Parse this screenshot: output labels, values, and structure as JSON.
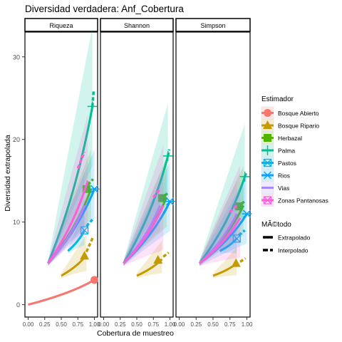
{
  "chart_data": {
    "type": "line",
    "title": "Diversidad verdadera: Anf_Cobertura",
    "xlabel": "Cobertura de muestreo",
    "ylabel": "Diversidad extrapolada",
    "xlim": [
      0,
      1
    ],
    "ylim": [
      -1.5,
      33
    ],
    "x_ticks": [
      "0.00",
      "0.25",
      "0.50",
      "0.75",
      "1.00"
    ],
    "y_ticks": [
      "0",
      "10",
      "20",
      "30"
    ],
    "facets": [
      "Riqueza",
      "Shannon",
      "Simpson"
    ],
    "legend_title": "Estimador",
    "method_title": "MÃ©todo",
    "methods": [
      "Extrapolado",
      "Interpolado"
    ],
    "series": [
      {
        "name": "Bosque Abierto",
        "color": "#F8766D",
        "marker": "circle",
        "facets": [
          {
            "x0": 0.0,
            "y0": 0.0,
            "x1": 1.0,
            "y1": 3.0,
            "sx": 1.0,
            "sy": 3.0,
            "ribbon": 0.0,
            "interp": []
          },
          null,
          null
        ]
      },
      {
        "name": "Bosque Ripario",
        "color": "#C49A00",
        "marker": "triangle",
        "facets": [
          {
            "x0": 0.5,
            "y0": 3.5,
            "x1": 0.88,
            "y1": 6.0,
            "sx": 0.85,
            "sy": 5.9,
            "ribbon": 1.6,
            "interp": [
              0.88,
              0.98
            ],
            "iy": [
              6.4,
              8.2
            ]
          },
          {
            "x0": 0.5,
            "y0": 3.5,
            "x1": 0.88,
            "y1": 5.5,
            "sx": 0.82,
            "sy": 5.4,
            "ribbon": 1.4,
            "interp": [
              0.9,
              0.98
            ],
            "iy": [
              5.8,
              6.3
            ]
          },
          {
            "x0": 0.5,
            "y0": 3.5,
            "x1": 0.85,
            "y1": 5.0,
            "sx": 0.84,
            "sy": 5.0,
            "ribbon": 1.2,
            "interp": [
              0.9,
              0.98
            ],
            "iy": [
              5.2,
              5.6
            ]
          }
        ]
      },
      {
        "name": "Herbazal",
        "color": "#53B400",
        "marker": "square",
        "facets": [
          {
            "x0": 0.3,
            "y0": 5.0,
            "x1": 0.95,
            "y1": 14.0,
            "sx": 0.88,
            "sy": 14.0,
            "ribbon": 3.0,
            "interp": [
              0.9,
              0.98
            ],
            "iy": [
              14.5,
              15.2
            ]
          },
          {
            "x0": 0.3,
            "y0": 5.0,
            "x1": 0.95,
            "y1": 13.0,
            "sx": 0.88,
            "sy": 12.9,
            "ribbon": 3.0,
            "interp": [
              0.92,
              0.98
            ],
            "iy": [
              13.2,
              13.6
            ]
          },
          {
            "x0": 0.3,
            "y0": 5.0,
            "x1": 0.95,
            "y1": 12.0,
            "sx": 0.88,
            "sy": 11.9,
            "ribbon": 3.0,
            "interp": [
              0.92,
              0.98
            ],
            "iy": [
              12.2,
              12.6
            ]
          }
        ]
      },
      {
        "name": "Palma",
        "color": "#00C094",
        "marker": "plus",
        "facets": [
          {
            "x0": 0.3,
            "y0": 5.0,
            "x1": 0.97,
            "y1": 24.0,
            "sx": 0.97,
            "sy": 24.0,
            "ribbon": 6.0,
            "interp": [
              0.97,
              0.99
            ],
            "iy": [
              24.0,
              26.0
            ]
          },
          {
            "x0": 0.3,
            "y0": 5.0,
            "x1": 0.97,
            "y1": 18.0,
            "sx": 0.97,
            "sy": 18.0,
            "ribbon": 4.0,
            "interp": [
              0.97,
              0.99
            ],
            "iy": [
              18.0,
              18.8
            ]
          },
          {
            "x0": 0.3,
            "y0": 5.0,
            "x1": 0.97,
            "y1": 15.5,
            "sx": 0.97,
            "sy": 15.5,
            "ribbon": 4.0,
            "interp": [
              0.97,
              0.99
            ],
            "iy": [
              15.5,
              16.0
            ]
          }
        ]
      },
      {
        "name": "Pastos",
        "color": "#00B6EB",
        "marker": "boxx",
        "facets": [
          {
            "x0": 0.6,
            "y0": 6.5,
            "x1": 0.85,
            "y1": 9.0,
            "sx": 0.85,
            "sy": 9.0,
            "ribbon": 1.5,
            "interp": [
              0.88,
              0.97
            ],
            "iy": [
              9.5,
              10.3
            ]
          },
          null,
          {
            "x0": 0.6,
            "y0": 6.5,
            "x1": 0.85,
            "y1": 8.0,
            "sx": 0.85,
            "sy": 8.0,
            "ribbon": 1.5,
            "interp": [
              0.88,
              0.97
            ],
            "iy": [
              8.4,
              9.0
            ]
          }
        ]
      },
      {
        "name": "Rios",
        "color": "#06A4FF",
        "marker": "star",
        "facets": [
          {
            "x0": 0.3,
            "y0": 5.0,
            "x1": 1.0,
            "y1": 14.0,
            "sx": 1.0,
            "sy": 14.0,
            "ribbon": 3.0,
            "interp": [],
            "iy": []
          },
          {
            "x0": 0.3,
            "y0": 5.0,
            "x1": 1.0,
            "y1": 12.5,
            "sx": 1.0,
            "sy": 12.5,
            "ribbon": 3.0,
            "interp": [],
            "iy": []
          },
          {
            "x0": 0.3,
            "y0": 5.0,
            "x1": 1.0,
            "y1": 11.0,
            "sx": 1.0,
            "sy": 11.0,
            "ribbon": 3.0,
            "interp": [],
            "iy": []
          }
        ]
      },
      {
        "name": "Vias",
        "color": "#A58AFF",
        "marker": "none",
        "facets": [
          {
            "x0": 0.3,
            "y0": 5.0,
            "x1": 0.85,
            "y1": 12.0,
            "sx": 0.85,
            "sy": 12.0,
            "ribbon": 2.5,
            "interp": [],
            "iy": []
          },
          {
            "x0": 0.3,
            "y0": 5.0,
            "x1": 0.85,
            "y1": 12.0,
            "sx": 0.85,
            "sy": 12.0,
            "ribbon": 2.5,
            "interp": [],
            "iy": []
          },
          {
            "x0": 0.3,
            "y0": 5.0,
            "x1": 0.85,
            "y1": 11.0,
            "sx": 0.85,
            "sy": 11.0,
            "ribbon": 2.5,
            "interp": [],
            "iy": []
          }
        ]
      },
      {
        "name": "Zonas Pantanosas",
        "color": "#FB61D7",
        "marker": "boxx",
        "facets": [
          {
            "x0": 0.3,
            "y0": 5.0,
            "x1": 0.9,
            "y1": 15.0,
            "sx": 0.0,
            "sy": 0.0,
            "ribbon": 5.0,
            "interp": [
              0.75,
              0.85
            ],
            "iy": [
              16.5,
              18.5
            ]
          },
          {
            "x0": 0.3,
            "y0": 5.0,
            "x1": 0.9,
            "y1": 12.0,
            "sx": 0.0,
            "sy": 0.0,
            "ribbon": 4.5,
            "interp": [
              0.75,
              0.85
            ],
            "iy": [
              13.0,
              14.0
            ]
          },
          {
            "x0": 0.3,
            "y0": 5.0,
            "x1": 0.9,
            "y1": 10.5,
            "sx": 0.0,
            "sy": 0.0,
            "ribbon": 4.0,
            "interp": [
              0.75,
              0.85
            ],
            "iy": [
              11.2,
              12.0
            ]
          }
        ]
      }
    ]
  }
}
